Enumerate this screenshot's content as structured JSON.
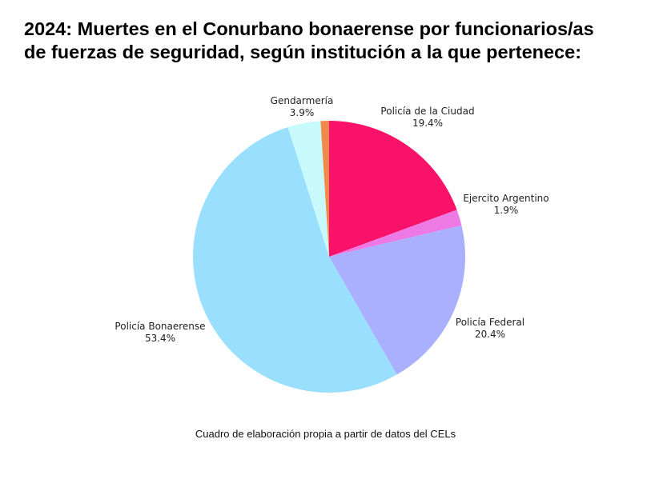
{
  "chart_data": {
    "type": "pie",
    "title_lines": [
      "2024: Muertes en el Conurbano bonaerense por funcionarios/as",
      "de fuerzas de seguridad, según institución a la que pertenece:"
    ],
    "slices": [
      {
        "label": "Policía de la Ciudad",
        "value": 19.4,
        "value_label": "19.4%",
        "color": "#f8126a"
      },
      {
        "label": "Ejercito Argentino",
        "value": 1.9,
        "value_label": "1.9%",
        "color": "#ec79e4"
      },
      {
        "label": "Policía Federal",
        "value": 20.4,
        "value_label": "20.4%",
        "color": "#aab0fe"
      },
      {
        "label": "Policía Bonaerense",
        "value": 53.4,
        "value_label": "53.4%",
        "color": "#9adffd"
      },
      {
        "label": "Gendarmería",
        "value": 3.9,
        "value_label": "3.9%",
        "color": "#c8fafc"
      },
      {
        "label": "",
        "value": 1.0,
        "value_label": "",
        "color": "#f08a4b"
      }
    ],
    "start_angle": "12 o'clock",
    "direction": "clockwise",
    "caption": "Cuadro de elaboración propia a partir de datos del CELs"
  }
}
